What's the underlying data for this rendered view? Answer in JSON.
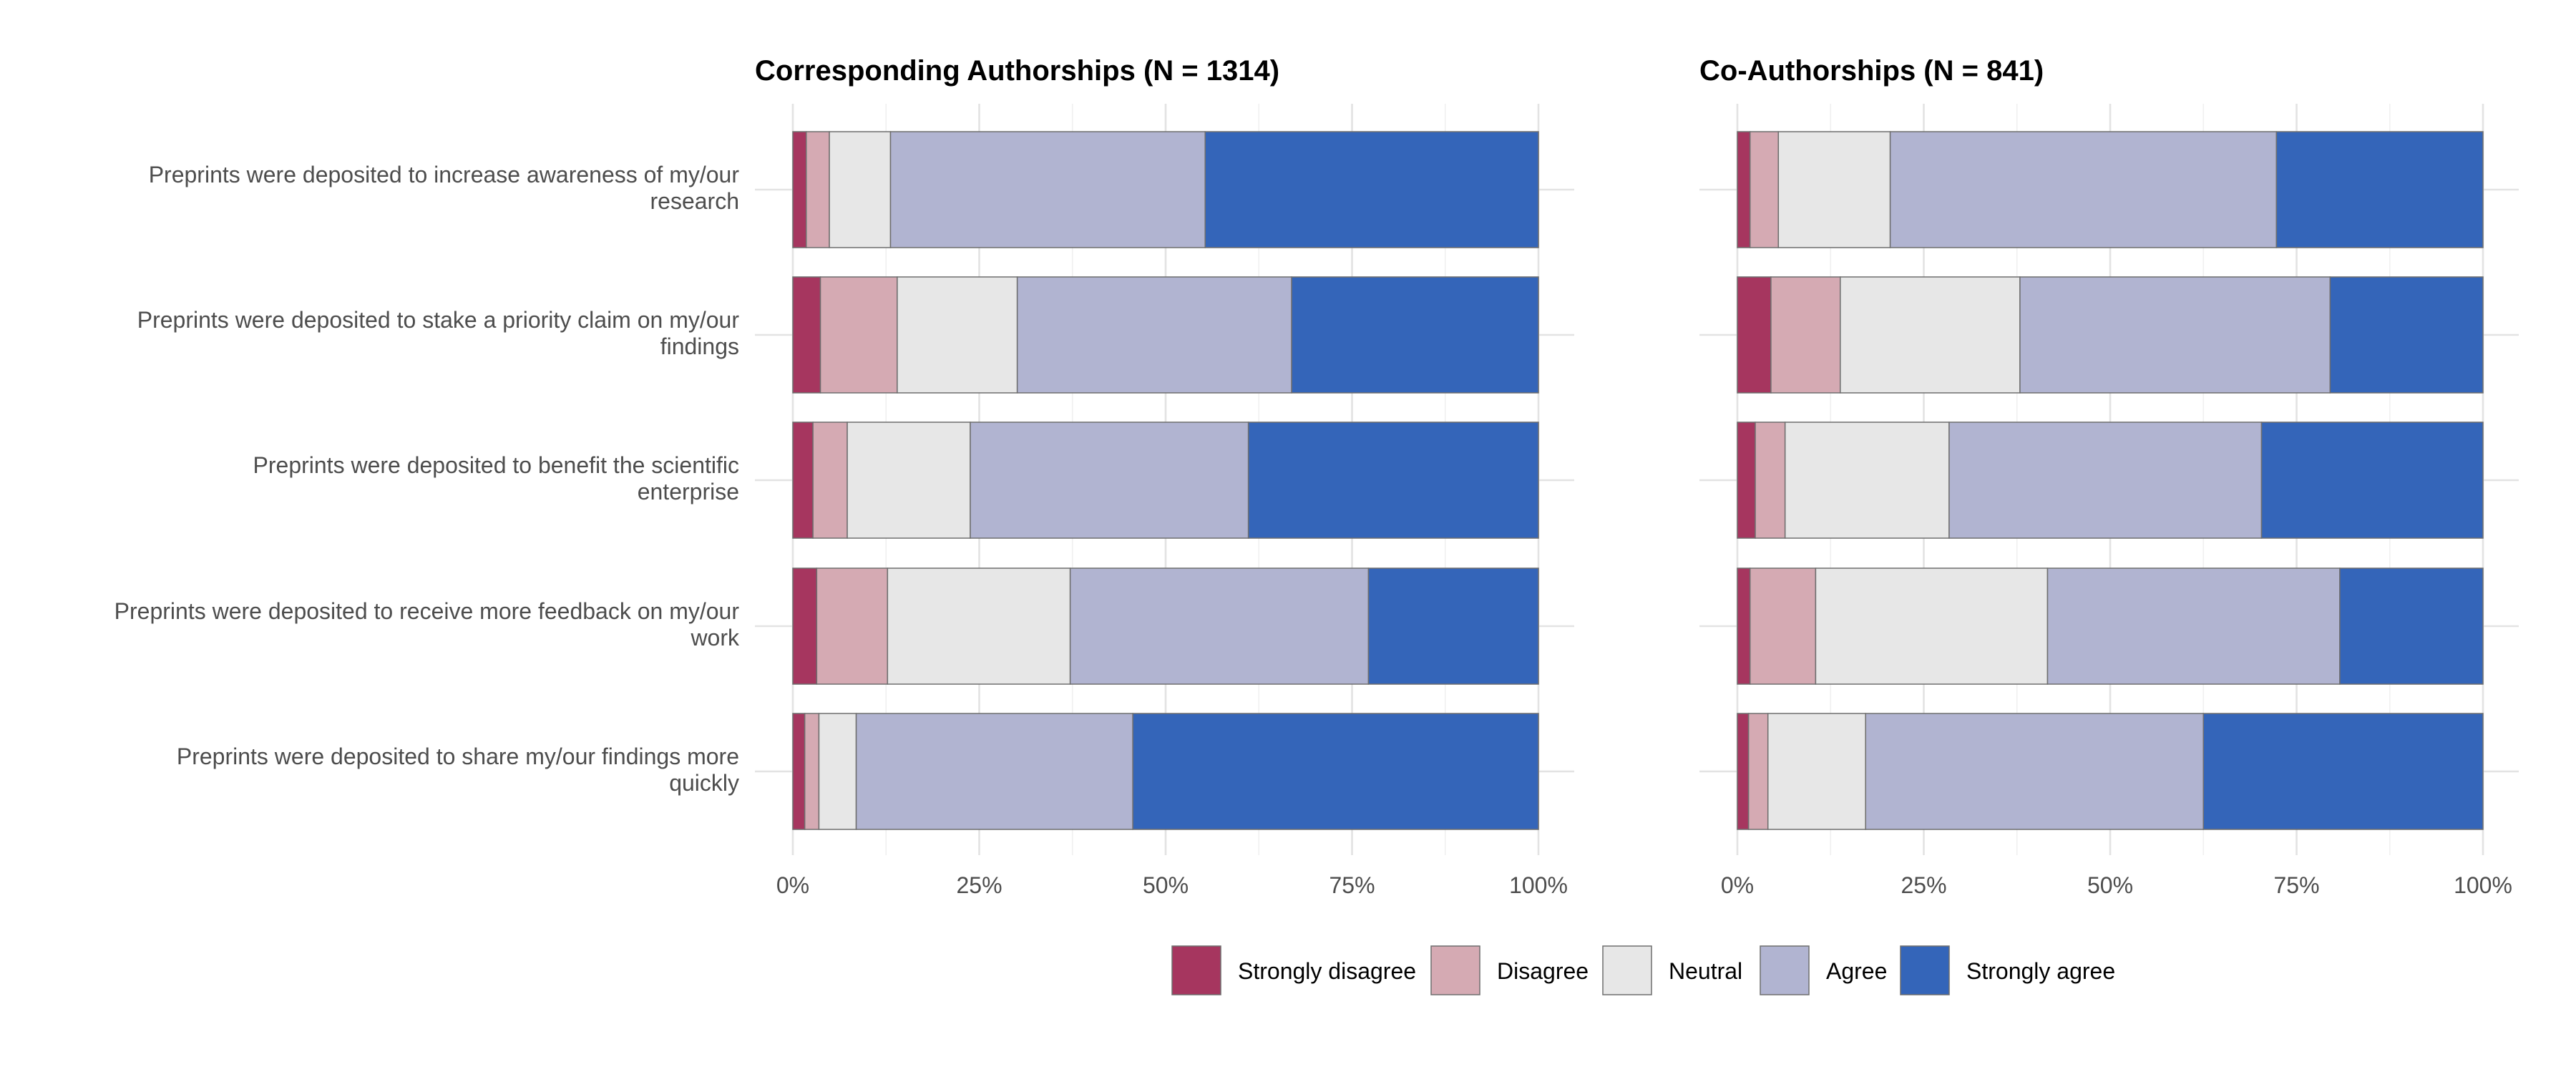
{
  "chart_data": {
    "type": "bar",
    "orientation": "horizontal",
    "stacked": true,
    "percent_axis": true,
    "grid": true,
    "legend_position": "bottom",
    "categories": [
      "Preprints were deposited to increase awareness of my/our research",
      "Preprints were deposited to stake a priority claim on my/our findings",
      "Preprints were deposited to benefit the scientific enterprise",
      "Preprints were deposited to receive more feedback on my/our work",
      "Preprints were deposited to share my/our findings more quickly"
    ],
    "category_lines": [
      [
        "Preprints were deposited to increase awareness of my/our",
        "research"
      ],
      [
        "Preprints were deposited to stake a priority claim on my/our",
        "findings"
      ],
      [
        "Preprints were deposited to benefit the scientific",
        "enterprise"
      ],
      [
        "Preprints were deposited to receive more feedback on my/our",
        "work"
      ],
      [
        "Preprints were deposited to share my/our findings more",
        "quickly"
      ]
    ],
    "x_ticks": [
      "0%",
      "25%",
      "50%",
      "75%",
      "100%"
    ],
    "xlim": [
      0,
      100
    ],
    "legend": [
      {
        "name": "Strongly disagree",
        "color": "#a6365f"
      },
      {
        "name": "Disagree",
        "color": "#d5aab3"
      },
      {
        "name": "Neutral",
        "color": "#e7e7e7"
      },
      {
        "name": "Agree",
        "color": "#b1b4d1"
      },
      {
        "name": "Strongly agree",
        "color": "#3465b9"
      }
    ],
    "panels": [
      {
        "title": "Corresponding Authorships (N = 1314)",
        "rows": [
          [
            1.8,
            3.1,
            8.2,
            42.2,
            44.7
          ],
          [
            3.7,
            10.3,
            16.1,
            36.8,
            33.1
          ],
          [
            2.7,
            4.6,
            16.5,
            37.3,
            38.9
          ],
          [
            3.2,
            9.5,
            24.5,
            40.0,
            22.8
          ],
          [
            1.6,
            1.9,
            5.0,
            37.1,
            54.4
          ]
        ]
      },
      {
        "title": "Co-Authorships (N = 841)",
        "rows": [
          [
            1.7,
            3.8,
            15.0,
            51.8,
            27.7
          ],
          [
            4.5,
            9.3,
            24.1,
            41.6,
            20.5
          ],
          [
            2.4,
            4.0,
            22.0,
            41.9,
            29.7
          ],
          [
            1.7,
            8.8,
            31.1,
            39.2,
            19.2
          ],
          [
            1.5,
            2.6,
            13.1,
            45.3,
            37.5
          ]
        ]
      }
    ]
  }
}
